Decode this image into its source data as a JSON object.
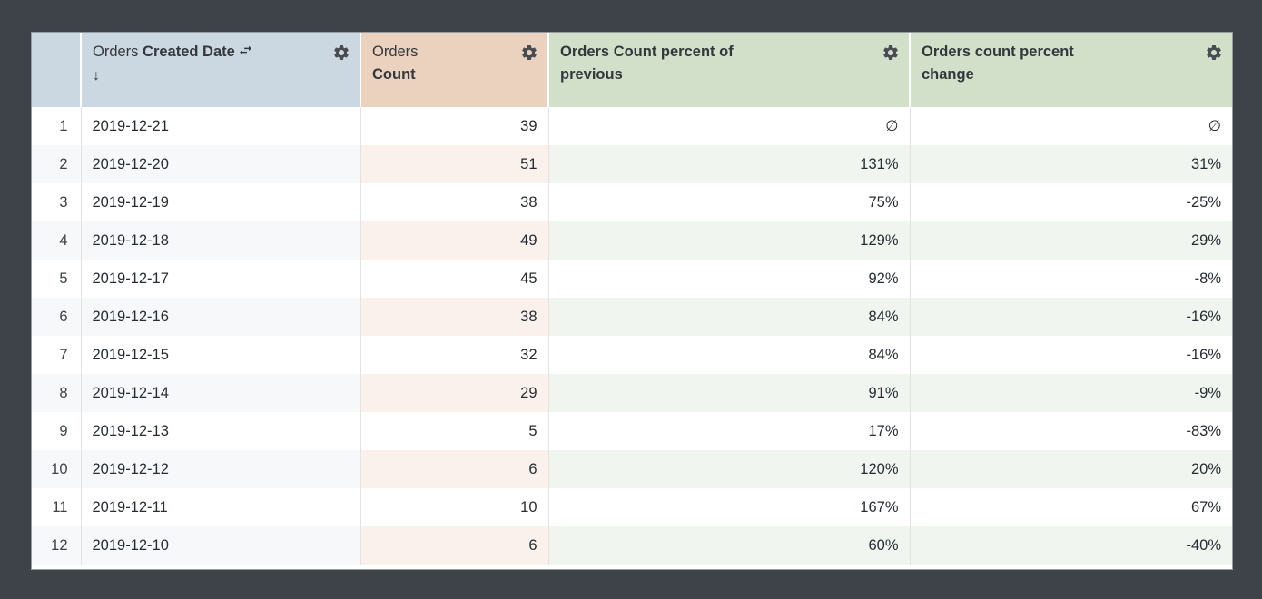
{
  "colors": {
    "page_background": "#3d4349",
    "header_dimension": "#ccd8e1",
    "header_measure": "#ead2be",
    "header_table_calc": "#d2e0ca",
    "band_dimension": "#f6f8fa",
    "band_measure": "#faf1ec",
    "band_table_calc": "#f0f6ef"
  },
  "table": {
    "header": {
      "columns": [
        {
          "view": "Orders",
          "field": "Created Date",
          "sort_arrow": "↓",
          "icons": [
            "swap-arrows-icon",
            "gear-icon"
          ]
        },
        {
          "view": "Orders",
          "field": "Count",
          "icons": [
            "gear-icon"
          ]
        },
        {
          "lines": [
            "Orders Count percent of",
            "previous"
          ],
          "icons": [
            "gear-icon"
          ]
        },
        {
          "lines": [
            "Orders count percent",
            "change"
          ],
          "icons": [
            "gear-icon"
          ]
        }
      ]
    },
    "rows": [
      {
        "num": "1",
        "date": "2019-12-21",
        "count": "39",
        "percent_of_previous": "∅",
        "percent_change": "∅"
      },
      {
        "num": "2",
        "date": "2019-12-20",
        "count": "51",
        "percent_of_previous": "131%",
        "percent_change": "31%"
      },
      {
        "num": "3",
        "date": "2019-12-19",
        "count": "38",
        "percent_of_previous": "75%",
        "percent_change": "-25%"
      },
      {
        "num": "4",
        "date": "2019-12-18",
        "count": "49",
        "percent_of_previous": "129%",
        "percent_change": "29%"
      },
      {
        "num": "5",
        "date": "2019-12-17",
        "count": "45",
        "percent_of_previous": "92%",
        "percent_change": "-8%"
      },
      {
        "num": "6",
        "date": "2019-12-16",
        "count": "38",
        "percent_of_previous": "84%",
        "percent_change": "-16%"
      },
      {
        "num": "7",
        "date": "2019-12-15",
        "count": "32",
        "percent_of_previous": "84%",
        "percent_change": "-16%"
      },
      {
        "num": "8",
        "date": "2019-12-14",
        "count": "29",
        "percent_of_previous": "91%",
        "percent_change": "-9%"
      },
      {
        "num": "9",
        "date": "2019-12-13",
        "count": "5",
        "percent_of_previous": "17%",
        "percent_change": "-83%"
      },
      {
        "num": "10",
        "date": "2019-12-12",
        "count": "6",
        "percent_of_previous": "120%",
        "percent_change": "20%"
      },
      {
        "num": "11",
        "date": "2019-12-11",
        "count": "10",
        "percent_of_previous": "167%",
        "percent_change": "67%"
      },
      {
        "num": "12",
        "date": "2019-12-10",
        "count": "6",
        "percent_of_previous": "60%",
        "percent_change": "-40%"
      }
    ]
  }
}
